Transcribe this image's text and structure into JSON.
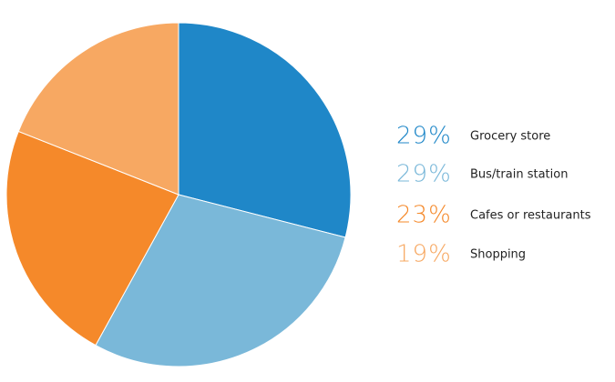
{
  "chart_data": {
    "type": "pie",
    "categories": [
      "Grocery store",
      "Bus/train station",
      "Cafes or restaurants",
      "Shopping"
    ],
    "values": [
      29,
      29,
      23,
      19
    ],
    "value_labels": [
      "29%",
      "29%",
      "23%",
      "19%"
    ],
    "colors": [
      "#1f87c8",
      "#7ab8d9",
      "#f5892a",
      "#f7a862"
    ],
    "legend": "right"
  }
}
